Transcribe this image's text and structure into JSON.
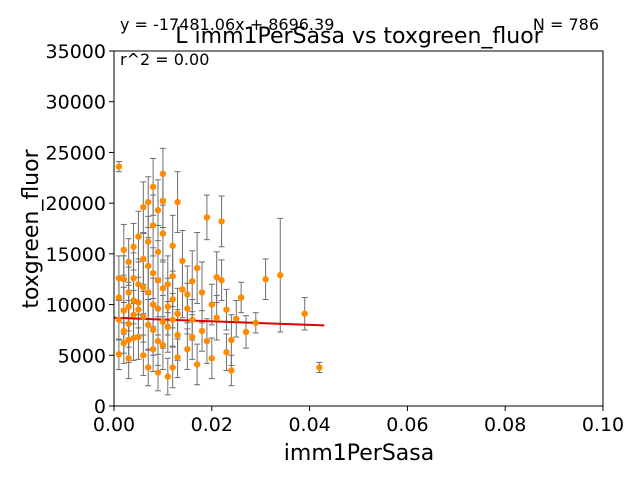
{
  "chart_data": {
    "type": "scatter",
    "title": "L imm1PerSasa vs toxgreen_fluor",
    "xlabel": "imm1PerSasa",
    "ylabel": "toxgreen_fluor",
    "xlim": [
      0,
      0.1
    ],
    "ylim": [
      0,
      35000
    ],
    "xticks": [
      0,
      0.02,
      0.04,
      0.06,
      0.08,
      0.1
    ],
    "xtick_labels": [
      "0.00",
      "0.02",
      "0.04",
      "0.06",
      "0.08",
      "0.10"
    ],
    "yticks": [
      0,
      5000,
      10000,
      15000,
      20000,
      25000,
      30000,
      35000
    ],
    "ytick_labels": [
      "0",
      "5000",
      "10000",
      "15000",
      "20000",
      "25000",
      "30000",
      "35000"
    ],
    "grid": false,
    "annotations": {
      "equation": "y = -17481.06x + 8696.39",
      "n_label": "N = 786",
      "r2": "r^2 = 0.00"
    },
    "fit_line": {
      "slope": -17481.06,
      "intercept": 8696.39,
      "x_range": [
        0.0,
        0.043
      ]
    },
    "colors": {
      "point": "#ff8c00",
      "errorbar": "#6e6e6e",
      "fit": "#e00000"
    },
    "points": [
      [
        0.001,
        23600,
        500
      ],
      [
        0.042,
        3800,
        500
      ],
      [
        0.034,
        12900,
        5600
      ],
      [
        0.039,
        9100,
        1600
      ],
      [
        0.031,
        12500,
        2000
      ],
      [
        0.029,
        8200,
        1000
      ],
      [
        0.026,
        10700,
        1500
      ],
      [
        0.024,
        6500,
        2500
      ],
      [
        0.024,
        3500,
        1500
      ],
      [
        0.022,
        18200,
        2500
      ],
      [
        0.022,
        12400,
        2000
      ],
      [
        0.023,
        5300,
        1800
      ],
      [
        0.021,
        12700,
        2500
      ],
      [
        0.02,
        10000,
        2000
      ],
      [
        0.019,
        18600,
        2200
      ],
      [
        0.018,
        7400,
        2000
      ],
      [
        0.017,
        13600,
        3500
      ],
      [
        0.016,
        12300,
        3000
      ],
      [
        0.016,
        8500,
        2000
      ],
      [
        0.015,
        9600,
        2500
      ],
      [
        0.013,
        20100,
        3000
      ],
      [
        0.012,
        15800,
        3000
      ],
      [
        0.011,
        9800,
        2800
      ],
      [
        0.01,
        22900,
        2500
      ],
      [
        0.01,
        20200,
        2600
      ],
      [
        0.01,
        17000,
        2800
      ],
      [
        0.009,
        19300,
        3000
      ],
      [
        0.009,
        15200,
        2600
      ],
      [
        0.008,
        21600,
        2800
      ],
      [
        0.008,
        17800,
        3000
      ],
      [
        0.008,
        13100,
        2500
      ],
      [
        0.007,
        20100,
        2500
      ],
      [
        0.007,
        16200,
        2500
      ],
      [
        0.006,
        19600,
        2500
      ],
      [
        0.006,
        14500,
        2500
      ],
      [
        0.005,
        16700,
        2500
      ],
      [
        0.005,
        12000,
        2500
      ],
      [
        0.004,
        15700,
        2300
      ],
      [
        0.004,
        10400,
        2300
      ],
      [
        0.003,
        14200,
        2300
      ],
      [
        0.003,
        8100,
        2300
      ],
      [
        0.002,
        12500,
        2300
      ],
      [
        0.002,
        6200,
        2000
      ],
      [
        0.001,
        10700,
        2000
      ],
      [
        0.001,
        5100,
        1500
      ],
      [
        0.002,
        15400,
        2500
      ],
      [
        0.014,
        11500,
        2800
      ],
      [
        0.013,
        4800,
        2000
      ],
      [
        0.015,
        5600,
        2000
      ],
      [
        0.017,
        4100,
        2000
      ],
      [
        0.012,
        3800,
        2000
      ],
      [
        0.011,
        2900,
        1800
      ],
      [
        0.009,
        3300,
        1800
      ],
      [
        0.007,
        3800,
        1800
      ],
      [
        0.006,
        5000,
        2000
      ],
      [
        0.004,
        6700,
        2200
      ],
      [
        0.003,
        4700,
        2000
      ],
      [
        0.018,
        11200,
        3000
      ],
      [
        0.019,
        6400,
        2200
      ],
      [
        0.02,
        4700,
        2000
      ],
      [
        0.014,
        14300,
        3000
      ],
      [
        0.012,
        12800,
        3000
      ],
      [
        0.013,
        9100,
        2500
      ],
      [
        0.011,
        7800,
        2500
      ],
      [
        0.01,
        11600,
        2800
      ],
      [
        0.009,
        9600,
        2600
      ],
      [
        0.008,
        7500,
        2500
      ],
      [
        0.008,
        5600,
        2200
      ],
      [
        0.007,
        11200,
        2600
      ],
      [
        0.006,
        8800,
        2500
      ],
      [
        0.005,
        9500,
        2500
      ],
      [
        0.005,
        6800,
        2200
      ],
      [
        0.004,
        12600,
        2500
      ],
      [
        0.003,
        11200,
        2500
      ],
      [
        0.002,
        9400,
        2300
      ],
      [
        0.002,
        7400,
        2200
      ],
      [
        0.001,
        8500,
        2000
      ],
      [
        0.001,
        12600,
        2200
      ],
      [
        0.016,
        6800,
        2200
      ],
      [
        0.015,
        11000,
        2800
      ],
      [
        0.013,
        7000,
        2500
      ],
      [
        0.012,
        10500,
        2800
      ],
      [
        0.011,
        12000,
        2800
      ],
      [
        0.01,
        8300,
        2600
      ],
      [
        0.009,
        12400,
        2800
      ],
      [
        0.009,
        6400,
        2400
      ],
      [
        0.008,
        10000,
        2600
      ],
      [
        0.007,
        8000,
        2500
      ],
      [
        0.007,
        13800,
        2800
      ],
      [
        0.006,
        11700,
        2600
      ],
      [
        0.005,
        10200,
        2500
      ],
      [
        0.004,
        9000,
        2400
      ],
      [
        0.003,
        9800,
        2400
      ],
      [
        0.003,
        6500,
        2200
      ],
      [
        0.01,
        6000,
        2400
      ],
      [
        0.012,
        8500,
        2600
      ],
      [
        0.021,
        8700,
        2200
      ],
      [
        0.023,
        9500,
        2000
      ],
      [
        0.025,
        8600,
        1800
      ],
      [
        0.027,
        7300,
        1600
      ]
    ]
  }
}
